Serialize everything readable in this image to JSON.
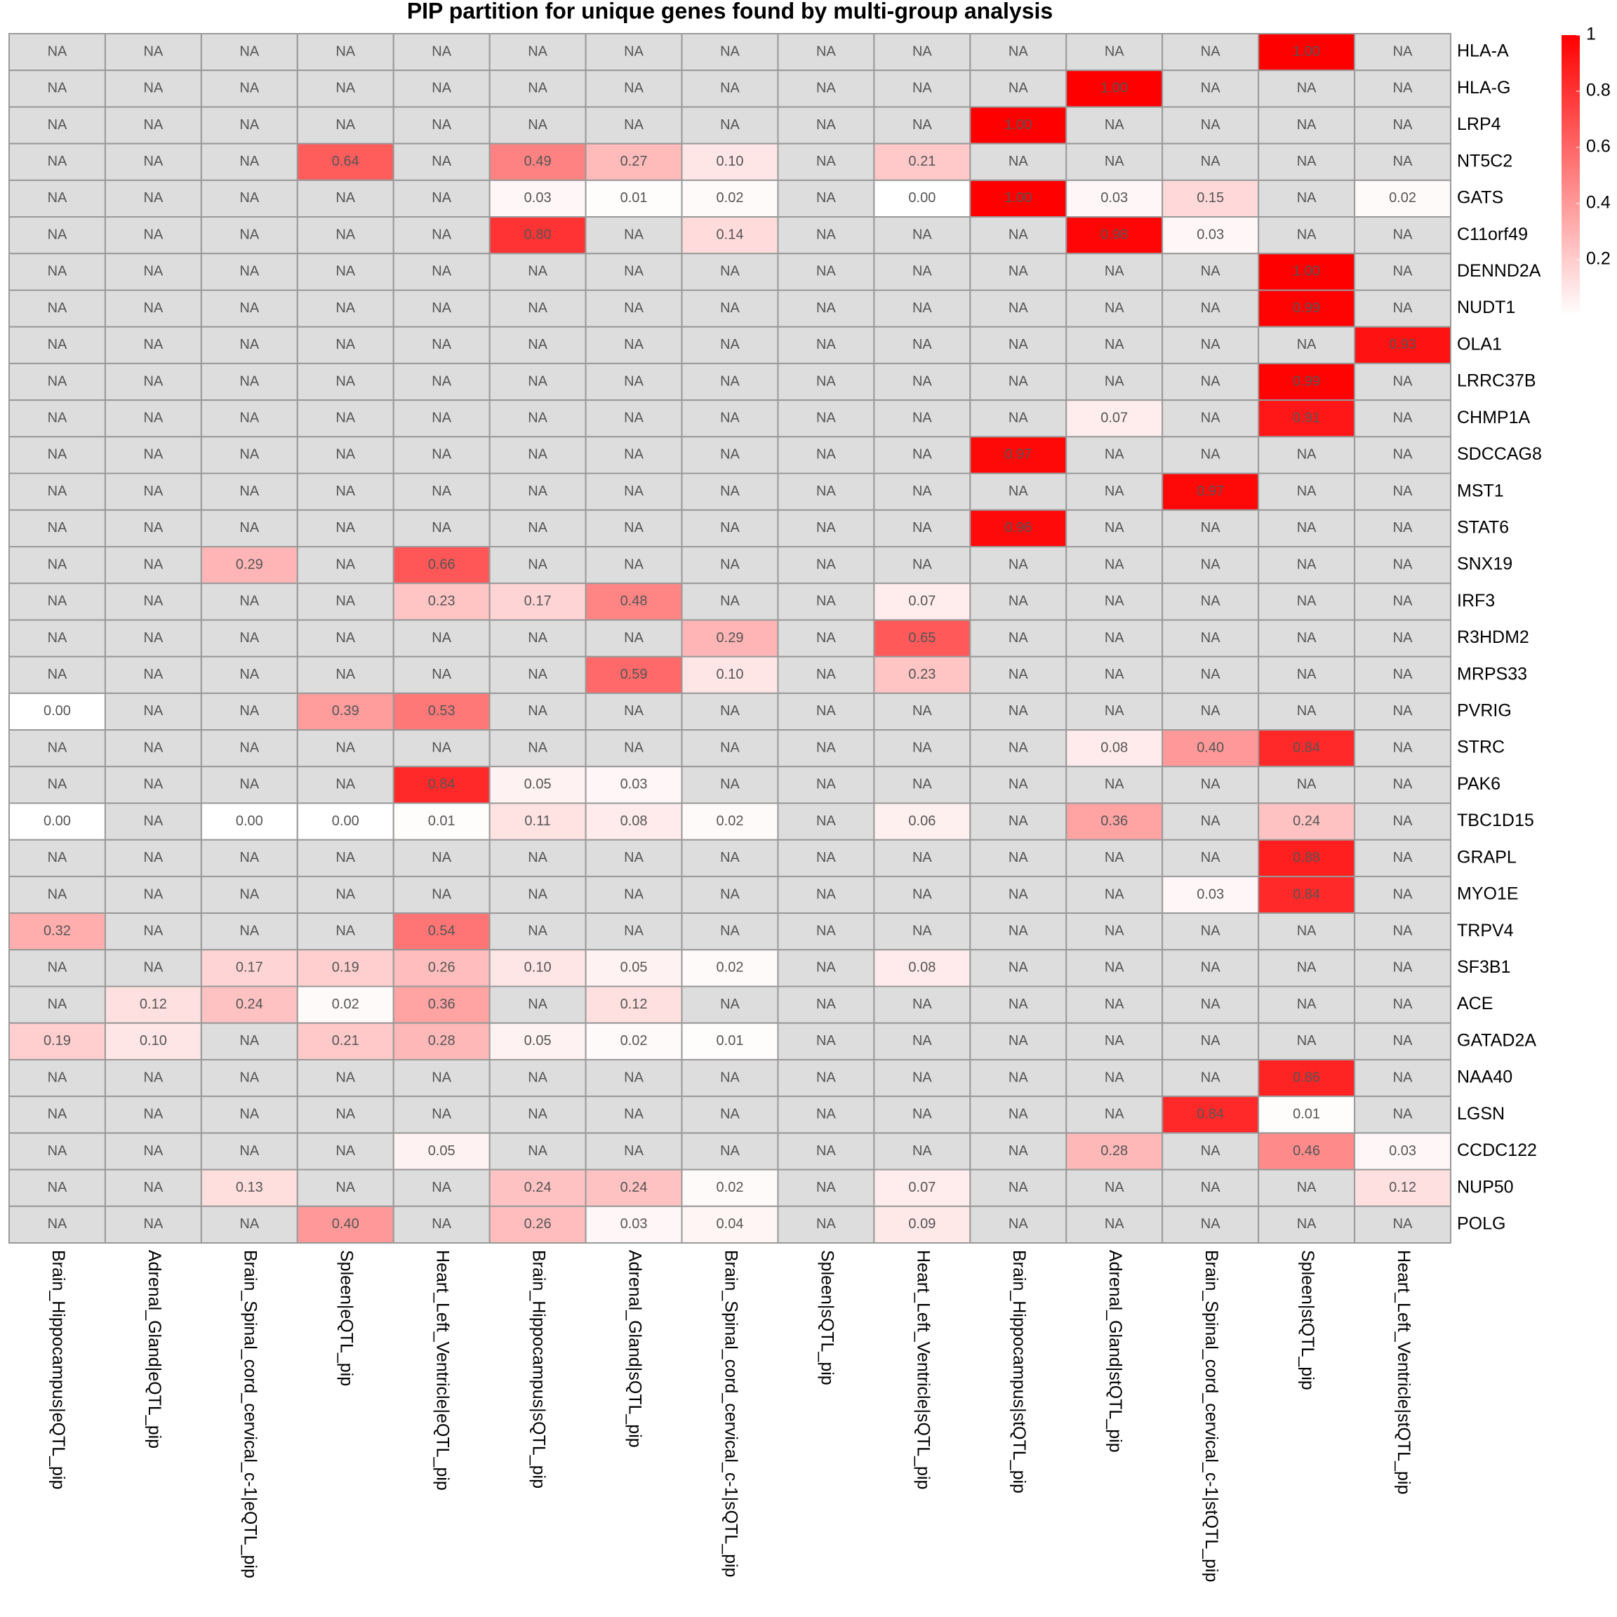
{
  "chart_data": {
    "type": "heatmap",
    "title": "PIP partition for unique genes found by multi-group analysis",
    "x": [
      "Brain_Hippocampus|eQTL_pip",
      "Adrenal_Gland|eQTL_pip",
      "Brain_Spinal_cord_cervical_c-1|eQTL_pip",
      "Spleen|eQTL_pip",
      "Heart_Left_Ventricle|eQTL_pip",
      "Brain_Hippocampus|sQTL_pip",
      "Adrenal_Gland|sQTL_pip",
      "Brain_Spinal_cord_cervical_c-1|sQTL_pip",
      "Spleen|sQTL_pip",
      "Heart_Left_Ventricle|sQTL_pip",
      "Brain_Hippocampus|stQTL_pip",
      "Adrenal_Gland|stQTL_pip",
      "Brain_Spinal_cord_cervical_c-1|stQTL_pip",
      "Spleen|stQTL_pip",
      "Heart_Left_Ventricle|stQTL_pip"
    ],
    "y": [
      "HLA-A",
      "HLA-G",
      "LRP4",
      "NT5C2",
      "GATS",
      "C11orf49",
      "DENND2A",
      "NUDT1",
      "OLA1",
      "LRRC37B",
      "CHMP1A",
      "SDCCAG8",
      "MST1",
      "STAT6",
      "SNX19",
      "IRF3",
      "R3HDM2",
      "MRPS33",
      "PVRIG",
      "STRC",
      "PAK6",
      "TBC1D15",
      "GRAPL",
      "MYO1E",
      "TRPV4",
      "SF3B1",
      "ACE",
      "GATAD2A",
      "NAA40",
      "LGSN",
      "CCDC122",
      "NUP50",
      "POLG"
    ],
    "values": [
      [
        null,
        null,
        null,
        null,
        null,
        null,
        null,
        null,
        null,
        null,
        null,
        null,
        null,
        1,
        null
      ],
      [
        null,
        null,
        null,
        null,
        null,
        null,
        null,
        null,
        null,
        null,
        null,
        1,
        null,
        null,
        null
      ],
      [
        null,
        null,
        null,
        null,
        null,
        null,
        null,
        null,
        null,
        null,
        1,
        null,
        null,
        null,
        null
      ],
      [
        null,
        null,
        null,
        0.64,
        null,
        0.49,
        0.27,
        0.1,
        null,
        0.21,
        null,
        null,
        null,
        null,
        null
      ],
      [
        null,
        null,
        null,
        null,
        null,
        0.03,
        0.01,
        0.02,
        null,
        0,
        1,
        0.03,
        0.15,
        null,
        0.02
      ],
      [
        null,
        null,
        null,
        null,
        null,
        0.8,
        null,
        0.14,
        null,
        null,
        null,
        0.98,
        0.03,
        null,
        null
      ],
      [
        null,
        null,
        null,
        null,
        null,
        null,
        null,
        null,
        null,
        null,
        null,
        null,
        null,
        1,
        null
      ],
      [
        null,
        null,
        null,
        null,
        null,
        null,
        null,
        null,
        null,
        null,
        null,
        null,
        null,
        0.99,
        null
      ],
      [
        null,
        null,
        null,
        null,
        null,
        null,
        null,
        null,
        null,
        null,
        null,
        null,
        null,
        null,
        0.93
      ],
      [
        null,
        null,
        null,
        null,
        null,
        null,
        null,
        null,
        null,
        null,
        null,
        null,
        null,
        0.99,
        null
      ],
      [
        null,
        null,
        null,
        null,
        null,
        null,
        null,
        null,
        null,
        null,
        null,
        0.07,
        null,
        0.91,
        null
      ],
      [
        null,
        null,
        null,
        null,
        null,
        null,
        null,
        null,
        null,
        null,
        0.97,
        null,
        null,
        null,
        null
      ],
      [
        null,
        null,
        null,
        null,
        null,
        null,
        null,
        null,
        null,
        null,
        null,
        null,
        0.97,
        null,
        null
      ],
      [
        null,
        null,
        null,
        null,
        null,
        null,
        null,
        null,
        null,
        null,
        0.96,
        null,
        null,
        null,
        null
      ],
      [
        null,
        null,
        0.29,
        null,
        0.66,
        null,
        null,
        null,
        null,
        null,
        null,
        null,
        null,
        null,
        null
      ],
      [
        null,
        null,
        null,
        null,
        0.23,
        0.17,
        0.48,
        null,
        null,
        0.07,
        null,
        null,
        null,
        null,
        null
      ],
      [
        null,
        null,
        null,
        null,
        null,
        null,
        null,
        0.29,
        null,
        0.65,
        null,
        null,
        null,
        null,
        null
      ],
      [
        null,
        null,
        null,
        null,
        null,
        null,
        0.59,
        0.1,
        null,
        0.23,
        null,
        null,
        null,
        null,
        null
      ],
      [
        0,
        null,
        null,
        0.39,
        0.53,
        null,
        null,
        null,
        null,
        null,
        null,
        null,
        null,
        null,
        null
      ],
      [
        null,
        null,
        null,
        null,
        null,
        null,
        null,
        null,
        null,
        null,
        null,
        0.08,
        0.4,
        0.84,
        null
      ],
      [
        null,
        null,
        null,
        null,
        0.84,
        0.05,
        0.03,
        null,
        null,
        null,
        null,
        null,
        null,
        null,
        null
      ],
      [
        0,
        null,
        0,
        0,
        0.01,
        0.11,
        0.08,
        0.02,
        null,
        0.06,
        null,
        0.36,
        null,
        0.24,
        null
      ],
      [
        null,
        null,
        null,
        null,
        null,
        null,
        null,
        null,
        null,
        null,
        null,
        null,
        null,
        0.88,
        null
      ],
      [
        null,
        null,
        null,
        null,
        null,
        null,
        null,
        null,
        null,
        null,
        null,
        null,
        0.03,
        0.84,
        null
      ],
      [
        0.32,
        null,
        null,
        null,
        0.54,
        null,
        null,
        null,
        null,
        null,
        null,
        null,
        null,
        null,
        null
      ],
      [
        null,
        null,
        0.17,
        0.19,
        0.26,
        0.1,
        0.05,
        0.02,
        null,
        0.08,
        null,
        null,
        null,
        null,
        null
      ],
      [
        null,
        0.12,
        0.24,
        0.02,
        0.36,
        null,
        0.12,
        null,
        null,
        null,
        null,
        null,
        null,
        null,
        null
      ],
      [
        0.19,
        0.1,
        null,
        0.21,
        0.28,
        0.05,
        0.02,
        0.01,
        null,
        null,
        null,
        null,
        null,
        null,
        null
      ],
      [
        null,
        null,
        null,
        null,
        null,
        null,
        null,
        null,
        null,
        null,
        null,
        null,
        null,
        0.86,
        null
      ],
      [
        null,
        null,
        null,
        null,
        null,
        null,
        null,
        null,
        null,
        null,
        null,
        null,
        0.84,
        0.01,
        null
      ],
      [
        null,
        null,
        null,
        null,
        0.05,
        null,
        null,
        null,
        null,
        null,
        null,
        0.28,
        null,
        0.46,
        0.03
      ],
      [
        null,
        null,
        0.13,
        null,
        null,
        0.24,
        0.24,
        0.02,
        null,
        0.07,
        null,
        null,
        null,
        null,
        0.12
      ],
      [
        null,
        null,
        null,
        0.4,
        null,
        0.26,
        0.03,
        0.04,
        null,
        0.09,
        null,
        null,
        null,
        null,
        null
      ]
    ],
    "value_labels": [
      [
        "NA",
        "NA",
        "NA",
        "NA",
        "NA",
        "NA",
        "NA",
        "NA",
        "NA",
        "NA",
        "NA",
        "NA",
        "NA",
        "1.00",
        "NA"
      ],
      [
        "NA",
        "NA",
        "NA",
        "NA",
        "NA",
        "NA",
        "NA",
        "NA",
        "NA",
        "NA",
        "NA",
        "1.00",
        "NA",
        "NA",
        "NA"
      ],
      [
        "NA",
        "NA",
        "NA",
        "NA",
        "NA",
        "NA",
        "NA",
        "NA",
        "NA",
        "NA",
        "1.00",
        "NA",
        "NA",
        "NA",
        "NA"
      ],
      [
        "NA",
        "NA",
        "NA",
        "0.64",
        "NA",
        "0.49",
        "0.27",
        "0.10",
        "NA",
        "0.21",
        "NA",
        "NA",
        "NA",
        "NA",
        "NA"
      ],
      [
        "NA",
        "NA",
        "NA",
        "NA",
        "NA",
        "0.03",
        "0.01",
        "0.02",
        "NA",
        "0.00",
        "1.00",
        "0.03",
        "0.15",
        "NA",
        "0.02"
      ],
      [
        "NA",
        "NA",
        "NA",
        "NA",
        "NA",
        "0.80",
        "NA",
        "0.14",
        "NA",
        "NA",
        "NA",
        "0.98",
        "0.03",
        "NA",
        "NA"
      ],
      [
        "NA",
        "NA",
        "NA",
        "NA",
        "NA",
        "NA",
        "NA",
        "NA",
        "NA",
        "NA",
        "NA",
        "NA",
        "NA",
        "1.00",
        "NA"
      ],
      [
        "NA",
        "NA",
        "NA",
        "NA",
        "NA",
        "NA",
        "NA",
        "NA",
        "NA",
        "NA",
        "NA",
        "NA",
        "NA",
        "0.99",
        "NA"
      ],
      [
        "NA",
        "NA",
        "NA",
        "NA",
        "NA",
        "NA",
        "NA",
        "NA",
        "NA",
        "NA",
        "NA",
        "NA",
        "NA",
        "NA",
        "0.93"
      ],
      [
        "NA",
        "NA",
        "NA",
        "NA",
        "NA",
        "NA",
        "NA",
        "NA",
        "NA",
        "NA",
        "NA",
        "NA",
        "NA",
        "0.99",
        "NA"
      ],
      [
        "NA",
        "NA",
        "NA",
        "NA",
        "NA",
        "NA",
        "NA",
        "NA",
        "NA",
        "NA",
        "NA",
        "0.07",
        "NA",
        "0.91",
        "NA"
      ],
      [
        "NA",
        "NA",
        "NA",
        "NA",
        "NA",
        "NA",
        "NA",
        "NA",
        "NA",
        "NA",
        "0.97",
        "NA",
        "NA",
        "NA",
        "NA"
      ],
      [
        "NA",
        "NA",
        "NA",
        "NA",
        "NA",
        "NA",
        "NA",
        "NA",
        "NA",
        "NA",
        "NA",
        "NA",
        "0.97",
        "NA",
        "NA"
      ],
      [
        "NA",
        "NA",
        "NA",
        "NA",
        "NA",
        "NA",
        "NA",
        "NA",
        "NA",
        "NA",
        "0.96",
        "NA",
        "NA",
        "NA",
        "NA"
      ],
      [
        "NA",
        "NA",
        "0.29",
        "NA",
        "0.66",
        "NA",
        "NA",
        "NA",
        "NA",
        "NA",
        "NA",
        "NA",
        "NA",
        "NA",
        "NA"
      ],
      [
        "NA",
        "NA",
        "NA",
        "NA",
        "0.23",
        "0.17",
        "0.48",
        "NA",
        "NA",
        "0.07",
        "NA",
        "NA",
        "NA",
        "NA",
        "NA"
      ],
      [
        "NA",
        "NA",
        "NA",
        "NA",
        "NA",
        "NA",
        "NA",
        "0.29",
        "NA",
        "0.65",
        "NA",
        "NA",
        "NA",
        "NA",
        "NA"
      ],
      [
        "NA",
        "NA",
        "NA",
        "NA",
        "NA",
        "NA",
        "0.59",
        "0.10",
        "NA",
        "0.23",
        "NA",
        "NA",
        "NA",
        "NA",
        "NA"
      ],
      [
        "0.00",
        "NA",
        "NA",
        "0.39",
        "0.53",
        "NA",
        "NA",
        "NA",
        "NA",
        "NA",
        "NA",
        "NA",
        "NA",
        "NA",
        "NA"
      ],
      [
        "NA",
        "NA",
        "NA",
        "NA",
        "NA",
        "NA",
        "NA",
        "NA",
        "NA",
        "NA",
        "NA",
        "0.08",
        "0.40",
        "0.84",
        "NA"
      ],
      [
        "NA",
        "NA",
        "NA",
        "NA",
        "0.84",
        "0.05",
        "0.03",
        "NA",
        "NA",
        "NA",
        "NA",
        "NA",
        "NA",
        "NA",
        "NA"
      ],
      [
        "0.00",
        "NA",
        "0.00",
        "0.00",
        "0.01",
        "0.11",
        "0.08",
        "0.02",
        "NA",
        "0.06",
        "NA",
        "0.36",
        "NA",
        "0.24",
        "NA"
      ],
      [
        "NA",
        "NA",
        "NA",
        "NA",
        "NA",
        "NA",
        "NA",
        "NA",
        "NA",
        "NA",
        "NA",
        "NA",
        "NA",
        "0.88",
        "NA"
      ],
      [
        "NA",
        "NA",
        "NA",
        "NA",
        "NA",
        "NA",
        "NA",
        "NA",
        "NA",
        "NA",
        "NA",
        "NA",
        "0.03",
        "0.84",
        "NA"
      ],
      [
        "0.32",
        "NA",
        "NA",
        "NA",
        "0.54",
        "NA",
        "NA",
        "NA",
        "NA",
        "NA",
        "NA",
        "NA",
        "NA",
        "NA",
        "NA"
      ],
      [
        "NA",
        "NA",
        "0.17",
        "0.19",
        "0.26",
        "0.10",
        "0.05",
        "0.02",
        "NA",
        "0.08",
        "NA",
        "NA",
        "NA",
        "NA",
        "NA"
      ],
      [
        "NA",
        "0.12",
        "0.24",
        "0.02",
        "0.36",
        "NA",
        "0.12",
        "NA",
        "NA",
        "NA",
        "NA",
        "NA",
        "NA",
        "NA",
        "NA"
      ],
      [
        "0.19",
        "0.10",
        "NA",
        "0.21",
        "0.28",
        "0.05",
        "0.02",
        "0.01",
        "NA",
        "NA",
        "NA",
        "NA",
        "NA",
        "NA",
        "NA"
      ],
      [
        "NA",
        "NA",
        "NA",
        "NA",
        "NA",
        "NA",
        "NA",
        "NA",
        "NA",
        "NA",
        "NA",
        "NA",
        "NA",
        "0.86",
        "NA"
      ],
      [
        "NA",
        "NA",
        "NA",
        "NA",
        "NA",
        "NA",
        "NA",
        "NA",
        "NA",
        "NA",
        "NA",
        "NA",
        "0.84",
        "0.01",
        "NA"
      ],
      [
        "NA",
        "NA",
        "NA",
        "NA",
        "0.05",
        "NA",
        "NA",
        "NA",
        "NA",
        "NA",
        "NA",
        "0.28",
        "NA",
        "0.46",
        "0.03"
      ],
      [
        "NA",
        "NA",
        "0.13",
        "NA",
        "NA",
        "0.24",
        "0.24",
        "0.02",
        "NA",
        "0.07",
        "NA",
        "NA",
        "NA",
        "NA",
        "0.12"
      ],
      [
        "NA",
        "NA",
        "NA",
        "0.40",
        "NA",
        "0.26",
        "0.03",
        "0.04",
        "NA",
        "0.09",
        "NA",
        "NA",
        "NA",
        "NA",
        "NA"
      ]
    ],
    "colors": [
      "#ffffff",
      "#ff0000"
    ],
    "na_color": "#dddddd",
    "ylim": [
      0,
      1
    ],
    "yticks": [
      0.2,
      0.4,
      0.6,
      0.8,
      1
    ]
  }
}
